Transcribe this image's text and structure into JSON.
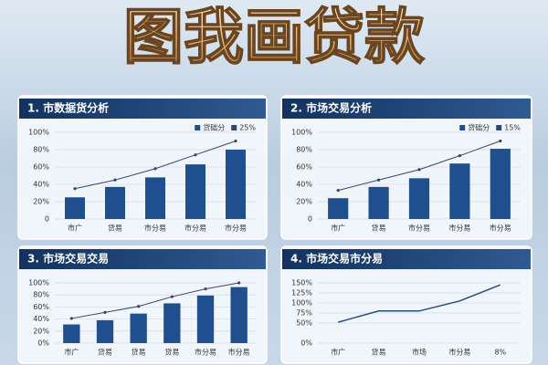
{
  "header": {
    "title": "图我画贷款"
  },
  "chart_data": [
    {
      "type": "bar",
      "title": "1. 市数据货分析",
      "categories": [
        "市广",
        "贷易",
        "市分易",
        "市分易",
        "市分易"
      ],
      "series": [
        {
          "name": "贷础分",
          "type": "bar",
          "color": "#1f4f8f",
          "values": [
            25,
            37,
            48,
            63,
            80
          ]
        },
        {
          "name": "25%",
          "type": "line",
          "color": "#34466e",
          "values": [
            35,
            45,
            58,
            74,
            90
          ]
        }
      ],
      "ylim": [
        0,
        100
      ],
      "yticks": [
        {
          "value": 0,
          "label": "0"
        },
        {
          "value": 20,
          "label": "20%"
        },
        {
          "value": 40,
          "label": "40%"
        },
        {
          "value": 60,
          "label": "60%"
        },
        {
          "value": 80,
          "label": "80%"
        },
        {
          "value": 100,
          "label": "100%"
        }
      ],
      "grid": true
    },
    {
      "type": "bar",
      "title": "2. 市场交易分析",
      "categories": [
        "市广",
        "贷易",
        "市分易",
        "市分易",
        "市分易"
      ],
      "series": [
        {
          "name": "贷础分",
          "type": "bar",
          "color": "#1f4f8f",
          "values": [
            24,
            37,
            47,
            64,
            81
          ]
        },
        {
          "name": "15%",
          "type": "line",
          "color": "#34466e",
          "values": [
            33,
            45,
            57,
            73,
            90
          ]
        }
      ],
      "ylim": [
        0,
        100
      ],
      "yticks": [
        {
          "value": 0,
          "label": "0"
        },
        {
          "value": 20,
          "label": "20%"
        },
        {
          "value": 40,
          "label": "40%"
        },
        {
          "value": 60,
          "label": "60%"
        },
        {
          "value": 80,
          "label": "80%"
        },
        {
          "value": 100,
          "label": "100%"
        }
      ],
      "grid": true
    },
    {
      "type": "bar",
      "title": "3. 市场交易交易",
      "categories": [
        "市广",
        "贷易",
        "贷易",
        "贷易",
        "市分易",
        "市分易"
      ],
      "series": [
        {
          "type": "bar",
          "color": "#1f4f8f",
          "values": [
            31,
            38,
            49,
            66,
            79,
            93
          ]
        },
        {
          "type": "line",
          "color": "#34466e",
          "values": [
            41,
            51,
            61,
            77,
            90,
            100
          ]
        }
      ],
      "ylim": [
        0,
        100
      ],
      "yticks": [
        {
          "value": 0,
          "label": "0%"
        },
        {
          "value": 20,
          "label": "20%"
        },
        {
          "value": 40,
          "label": "40%"
        },
        {
          "value": 60,
          "label": "60%"
        },
        {
          "value": 80,
          "label": "80%"
        },
        {
          "value": 100,
          "label": "100%"
        }
      ],
      "grid": true
    },
    {
      "type": "line",
      "title": "4. 市场交易市分易",
      "categories": [
        "市广",
        "贷易",
        "市场",
        "市分易",
        "8%"
      ],
      "series": [
        {
          "type": "line",
          "color": "#2b4a80",
          "values": [
            52,
            80,
            80,
            105,
            145
          ]
        }
      ],
      "ylim": [
        0,
        150
      ],
      "yticks": [
        {
          "value": 0,
          "label": "0%"
        },
        {
          "value": 50,
          "label": "50%"
        },
        {
          "value": 75,
          "label": "75%"
        },
        {
          "value": 100,
          "label": "100%"
        },
        {
          "value": 125,
          "label": "125%"
        },
        {
          "value": 150,
          "label": "150%"
        }
      ],
      "grid": true
    }
  ]
}
